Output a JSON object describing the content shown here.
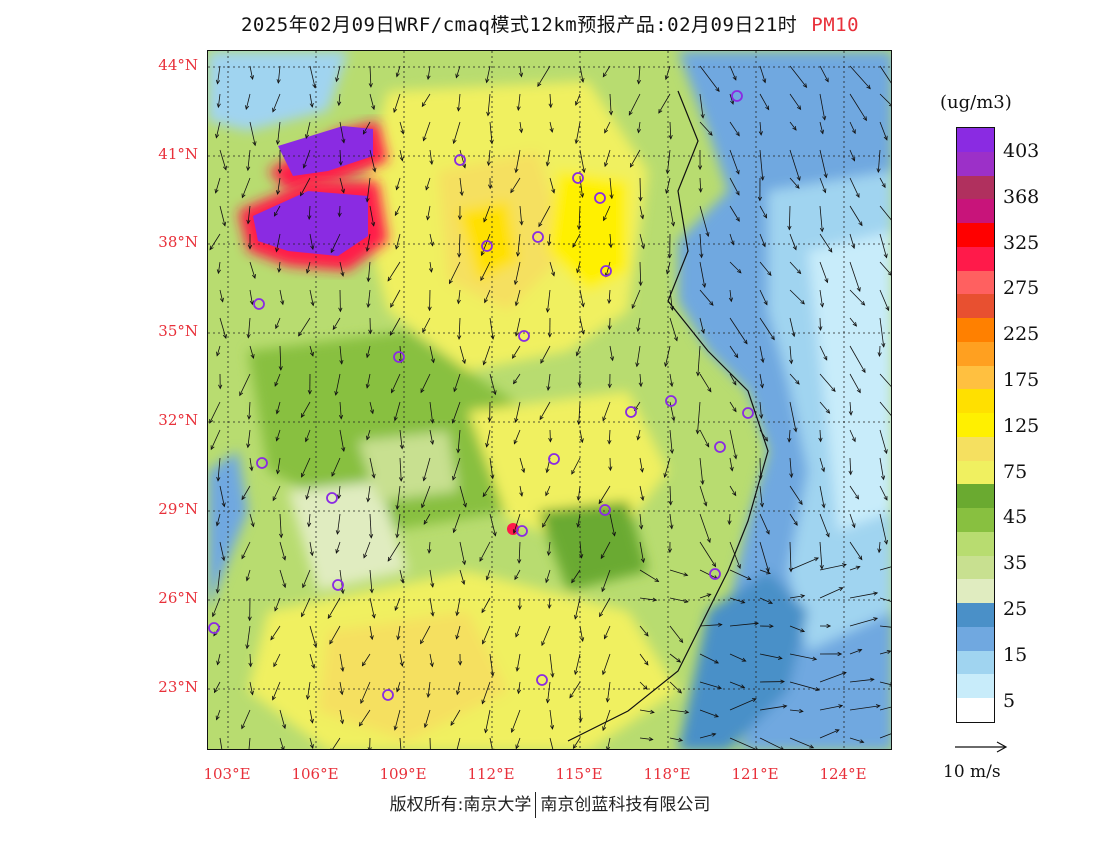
{
  "header": {
    "title": "2025年02月09日WRF/cmaq模式12km预报产品:02月09日21时",
    "pollutant": "PM10"
  },
  "map": {
    "lat_labels": [
      "44°N",
      "41°N",
      "38°N",
      "35°N",
      "32°N",
      "29°N",
      "26°N",
      "23°N"
    ],
    "lon_labels": [
      "103°E",
      "106°E",
      "109°E",
      "112°E",
      "115°E",
      "118°E",
      "121°E",
      "124°E"
    ],
    "station_marker_color": "#8a2be2"
  },
  "legend": {
    "unit": "(ug/m3)",
    "labels": [
      "403",
      "368",
      "325",
      "275",
      "225",
      "175",
      "125",
      "75",
      "45",
      "35",
      "25",
      "15",
      "5"
    ],
    "colors": [
      "#8a2be2",
      "#9c30c8",
      "#b0305e",
      "#c8147a",
      "#ff0000",
      "#ff1a4a",
      "#ff6060",
      "#e85030",
      "#ff8000",
      "#ffa020",
      "#ffc040",
      "#ffe000",
      "#fff000",
      "#f5e060",
      "#f0f060",
      "#6aaa30",
      "#88c040",
      "#b8dc70",
      "#c8e090",
      "#e0ecc0",
      "#4a90c8",
      "#70a8e0",
      "#a0d4f0",
      "#c8ecfa",
      "#ffffff"
    ]
  },
  "wind_key": {
    "label": "10 m/s"
  },
  "footer": {
    "left": "版权所有:南京大学",
    "right": "南京创蓝科技有限公司"
  }
}
